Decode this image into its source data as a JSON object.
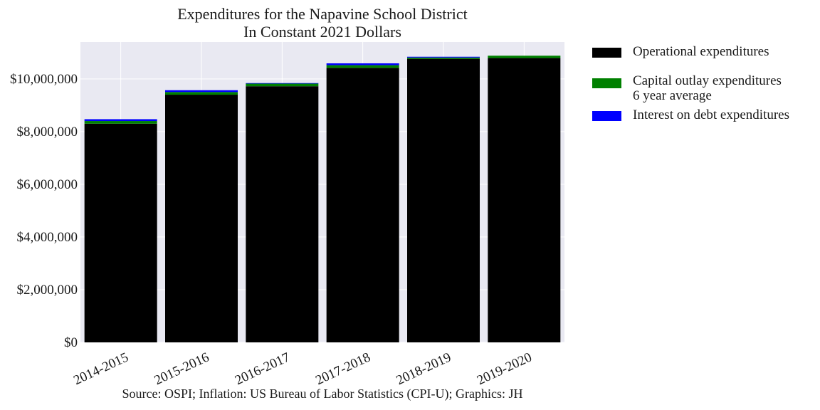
{
  "chart_data": {
    "type": "bar",
    "stacked": true,
    "title": "Expenditures for the Napavine School District",
    "subtitle": "In Constant 2021 Dollars",
    "source": "Source: OSPI; Inflation: US Bureau of Labor Statistics (CPI-U); Graphics: JH",
    "categories": [
      "2014-2015",
      "2015-2016",
      "2016-2017",
      "2017-2018",
      "2018-2019",
      "2019-2020"
    ],
    "series": [
      {
        "name": "Operational expenditures",
        "color": "#000000",
        "values": [
          8300000,
          9400000,
          9720000,
          10420000,
          10760000,
          10790000
        ]
      },
      {
        "name": "Capital outlay expenditures\n6 year average",
        "color": "#008000",
        "values": [
          100000,
          100000,
          100000,
          100000,
          50000,
          90000
        ]
      },
      {
        "name": "Interest on debt expenditures",
        "color": "#0000ff",
        "values": [
          70000,
          70000,
          20000,
          70000,
          30000,
          0
        ]
      }
    ],
    "ylim": [
      0,
      11400000
    ],
    "yticks": [
      0,
      2000000,
      4000000,
      6000000,
      8000000,
      10000000
    ],
    "ytick_labels": [
      "$0",
      "$2,000,000",
      "$4,000,000",
      "$6,000,000",
      "$8,000,000",
      "$10,000,000"
    ],
    "xlabel": "",
    "ylabel": "",
    "grid": true,
    "legend_position": "outside-right",
    "colors": {
      "plot_background": "#e9e9f2",
      "grid": "#ffffff"
    }
  }
}
